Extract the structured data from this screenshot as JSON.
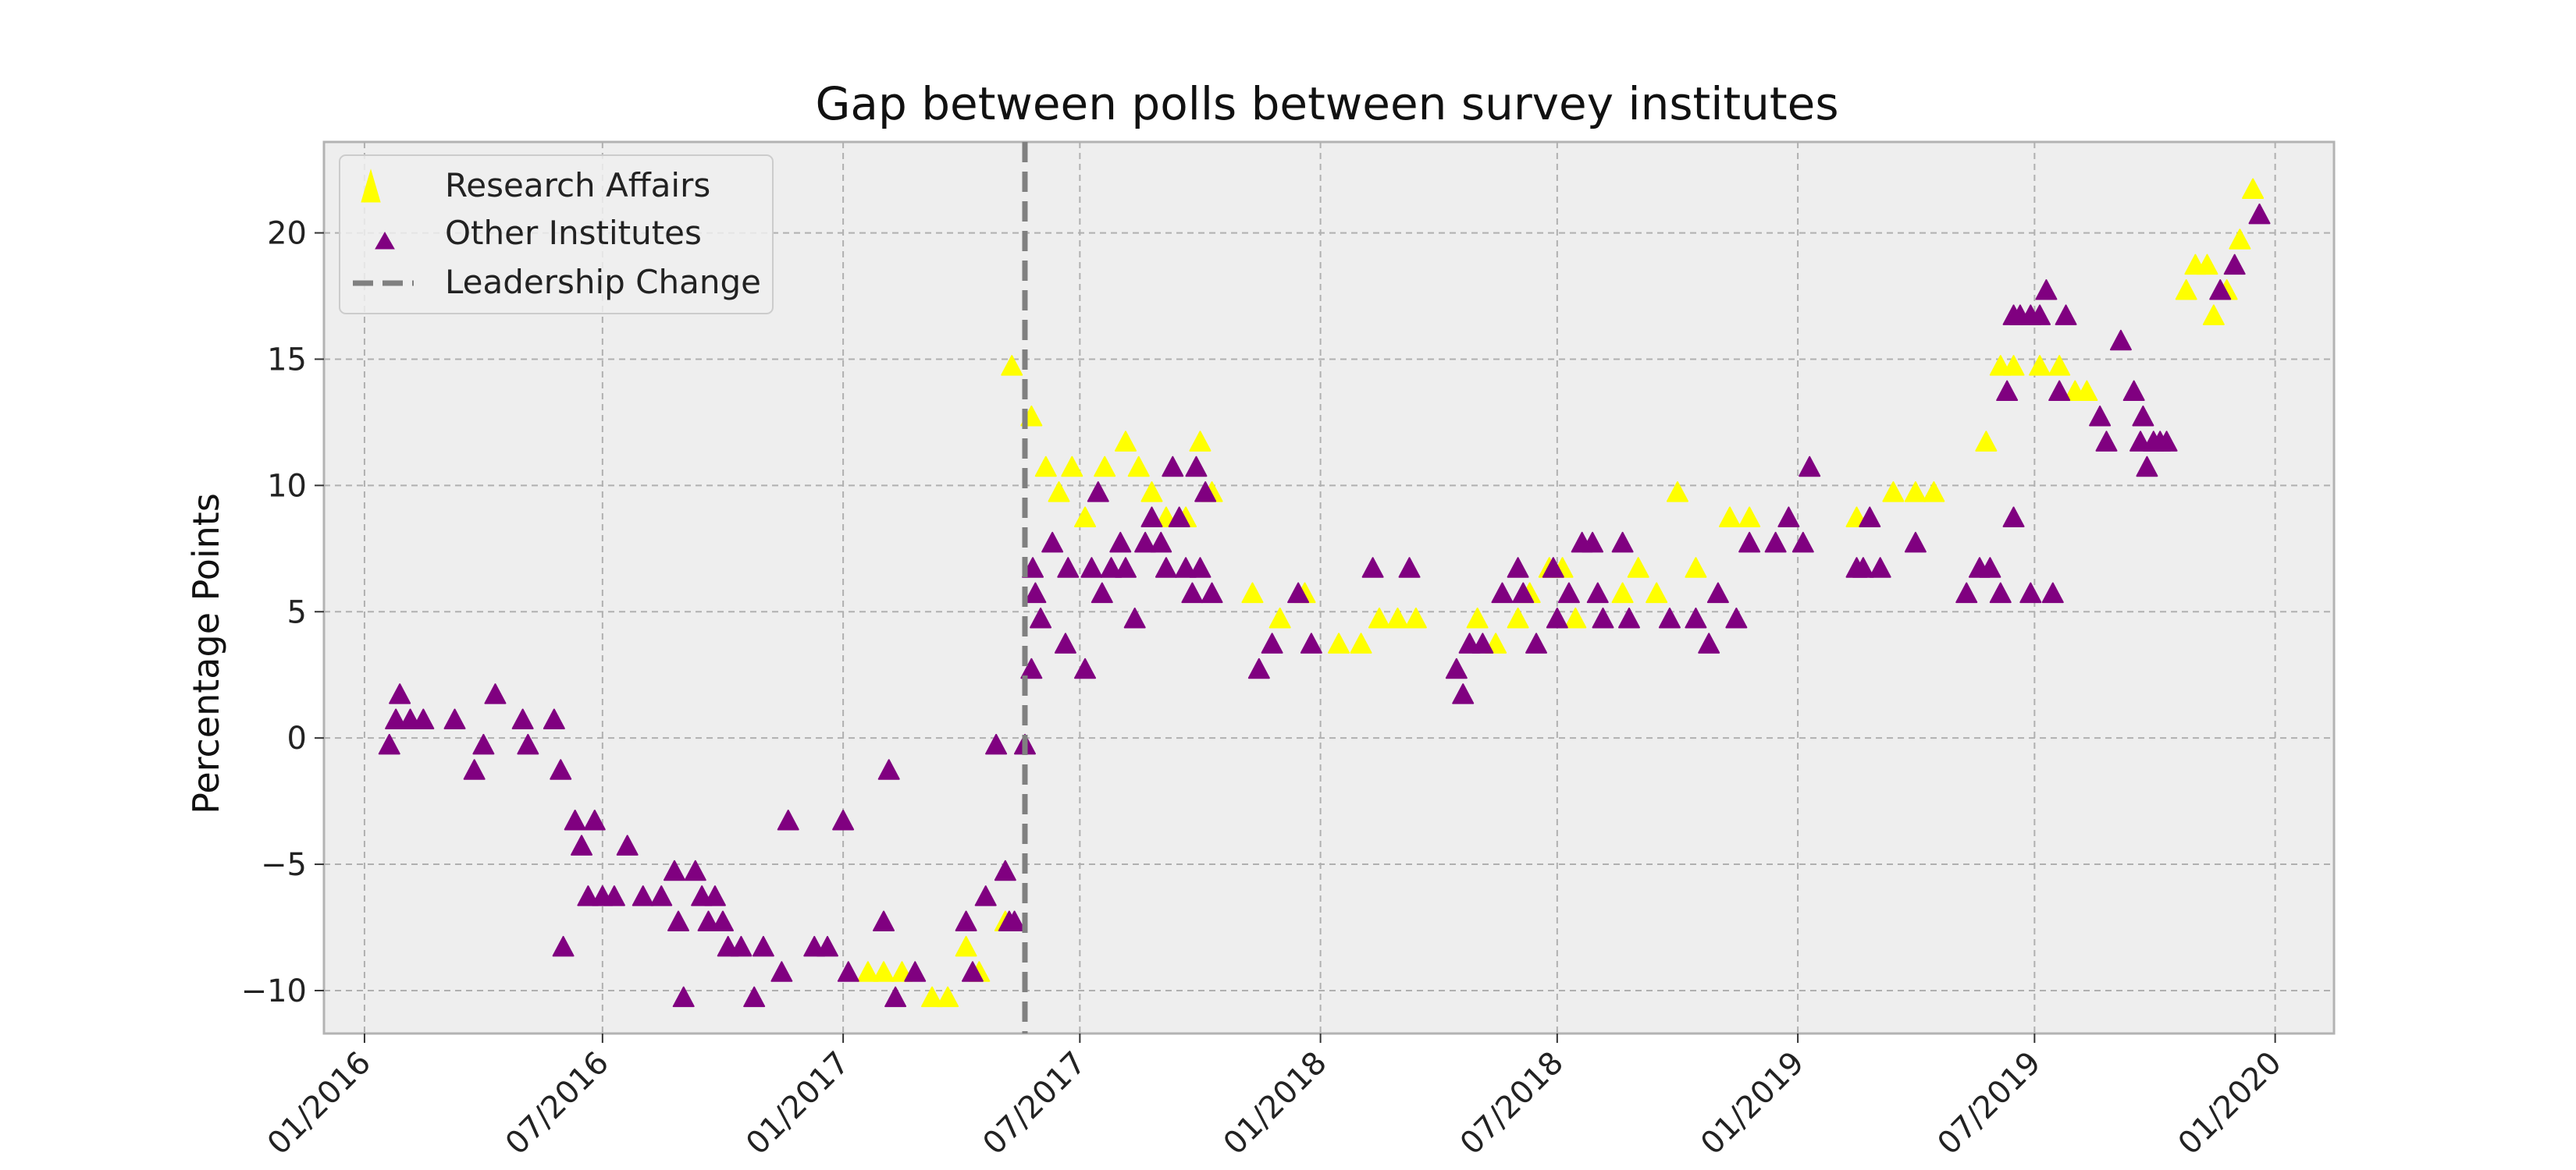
{
  "chart_data": {
    "type": "scatter",
    "title": "Gap between polls between survey institutes",
    "xlabel": "",
    "ylabel": "Percentage Points",
    "x_axis": {
      "type": "date",
      "range": [
        "2015-12-01",
        "2020-02-15"
      ],
      "tick_dates": [
        "2016-01-01",
        "2016-07-01",
        "2017-01-01",
        "2017-07-01",
        "2018-01-01",
        "2018-07-01",
        "2019-01-01",
        "2019-07-01",
        "2020-01-01"
      ],
      "tick_labels": [
        "01/2016",
        "07/2016",
        "01/2017",
        "07/2017",
        "01/2018",
        "07/2018",
        "01/2019",
        "07/2019",
        "01/2020"
      ]
    },
    "y_axis": {
      "range": [
        -11.7,
        23.6
      ],
      "ticks": [
        -10,
        -5,
        0,
        5,
        10,
        15,
        20
      ],
      "tick_labels": [
        "−10",
        "−5",
        "0",
        "5",
        "10",
        "15",
        "20"
      ]
    },
    "grid": true,
    "legend_position": "top-left",
    "colors": {
      "research_affairs": "#ffff00",
      "other_institutes": "#800080",
      "leadership_change": "#808080",
      "plot_background": "#eeeeee",
      "grid": "#b0b0b0"
    },
    "series": [
      {
        "name": "Research Affairs",
        "marker": "triangle-up",
        "color": "#ffff00",
        "points": [
          [
            "2017-01-20",
            -9.3
          ],
          [
            "2017-02-01",
            -9.3
          ],
          [
            "2017-02-15",
            -9.3
          ],
          [
            "2017-03-10",
            -10.3
          ],
          [
            "2017-03-22",
            -10.3
          ],
          [
            "2017-04-05",
            -8.3
          ],
          [
            "2017-04-15",
            -9.3
          ],
          [
            "2017-05-05",
            -7.3
          ],
          [
            "2017-05-10",
            14.7
          ],
          [
            "2017-05-25",
            12.7
          ],
          [
            "2017-06-05",
            10.7
          ],
          [
            "2017-06-15",
            9.7
          ],
          [
            "2017-06-25",
            10.7
          ],
          [
            "2017-07-05",
            8.7
          ],
          [
            "2017-07-20",
            10.7
          ],
          [
            "2017-08-05",
            11.7
          ],
          [
            "2017-08-15",
            10.7
          ],
          [
            "2017-08-25",
            9.7
          ],
          [
            "2017-09-05",
            8.7
          ],
          [
            "2017-09-20",
            8.7
          ],
          [
            "2017-10-01",
            11.7
          ],
          [
            "2017-10-10",
            9.7
          ],
          [
            "2017-11-10",
            5.7
          ],
          [
            "2017-12-01",
            4.7
          ],
          [
            "2017-12-20",
            5.7
          ],
          [
            "2018-01-15",
            3.7
          ],
          [
            "2018-02-01",
            3.7
          ],
          [
            "2018-02-15",
            4.7
          ],
          [
            "2018-03-01",
            4.7
          ],
          [
            "2018-03-15",
            4.7
          ],
          [
            "2018-05-01",
            4.7
          ],
          [
            "2018-05-15",
            3.7
          ],
          [
            "2018-06-01",
            4.7
          ],
          [
            "2018-06-10",
            5.7
          ],
          [
            "2018-06-25",
            6.7
          ],
          [
            "2018-07-05",
            6.7
          ],
          [
            "2018-07-15",
            4.7
          ],
          [
            "2018-08-20",
            5.7
          ],
          [
            "2018-09-01",
            6.7
          ],
          [
            "2018-09-15",
            5.7
          ],
          [
            "2018-10-01",
            9.7
          ],
          [
            "2018-10-15",
            6.7
          ],
          [
            "2018-11-10",
            8.7
          ],
          [
            "2018-11-25",
            8.7
          ],
          [
            "2019-02-15",
            8.7
          ],
          [
            "2019-03-15",
            9.7
          ],
          [
            "2019-04-01",
            9.7
          ],
          [
            "2019-04-15",
            9.7
          ],
          [
            "2019-05-25",
            11.7
          ],
          [
            "2019-06-05",
            14.7
          ],
          [
            "2019-06-15",
            14.7
          ],
          [
            "2019-07-05",
            14.7
          ],
          [
            "2019-07-20",
            14.7
          ],
          [
            "2019-08-01",
            13.7
          ],
          [
            "2019-08-10",
            13.7
          ],
          [
            "2019-10-25",
            17.7
          ],
          [
            "2019-11-01",
            18.7
          ],
          [
            "2019-11-10",
            18.7
          ],
          [
            "2019-11-15",
            16.7
          ],
          [
            "2019-11-25",
            17.7
          ],
          [
            "2019-12-05",
            19.7
          ],
          [
            "2019-12-15",
            21.7
          ]
        ]
      },
      {
        "name": "Other Institutes",
        "marker": "triangle-up",
        "color": "#800080",
        "points": [
          [
            "2016-01-20",
            -0.3
          ],
          [
            "2016-01-25",
            0.7
          ],
          [
            "2016-01-28",
            1.7
          ],
          [
            "2016-02-05",
            0.7
          ],
          [
            "2016-02-15",
            0.7
          ],
          [
            "2016-03-10",
            0.7
          ],
          [
            "2016-03-25",
            -1.3
          ],
          [
            "2016-04-01",
            -0.3
          ],
          [
            "2016-04-10",
            1.7
          ],
          [
            "2016-05-01",
            0.7
          ],
          [
            "2016-05-05",
            -0.3
          ],
          [
            "2016-05-25",
            0.7
          ],
          [
            "2016-05-30",
            -1.3
          ],
          [
            "2016-06-01",
            -8.3
          ],
          [
            "2016-06-10",
            -3.3
          ],
          [
            "2016-06-15",
            -4.3
          ],
          [
            "2016-06-20",
            -6.3
          ],
          [
            "2016-06-25",
            -3.3
          ],
          [
            "2016-07-01",
            -6.3
          ],
          [
            "2016-07-10",
            -6.3
          ],
          [
            "2016-07-20",
            -4.3
          ],
          [
            "2016-08-01",
            -6.3
          ],
          [
            "2016-08-15",
            -6.3
          ],
          [
            "2016-08-25",
            -5.3
          ],
          [
            "2016-08-28",
            -7.3
          ],
          [
            "2016-09-01",
            -10.3
          ],
          [
            "2016-09-10",
            -5.3
          ],
          [
            "2016-09-15",
            -6.3
          ],
          [
            "2016-09-20",
            -7.3
          ],
          [
            "2016-09-25",
            -6.3
          ],
          [
            "2016-10-01",
            -7.3
          ],
          [
            "2016-10-05",
            -8.3
          ],
          [
            "2016-10-15",
            -8.3
          ],
          [
            "2016-10-25",
            -10.3
          ],
          [
            "2016-11-01",
            -8.3
          ],
          [
            "2016-11-15",
            -9.3
          ],
          [
            "2016-11-20",
            -3.3
          ],
          [
            "2016-12-10",
            -8.3
          ],
          [
            "2016-12-20",
            -8.3
          ],
          [
            "2017-01-01",
            -3.3
          ],
          [
            "2017-01-05",
            -9.3
          ],
          [
            "2017-02-01",
            -7.3
          ],
          [
            "2017-02-05",
            -1.3
          ],
          [
            "2017-02-10",
            -10.3
          ],
          [
            "2017-02-25",
            -9.3
          ],
          [
            "2017-04-05",
            -7.3
          ],
          [
            "2017-04-10",
            -9.3
          ],
          [
            "2017-04-20",
            -6.3
          ],
          [
            "2017-04-28",
            -0.3
          ],
          [
            "2017-05-05",
            -5.3
          ],
          [
            "2017-05-08",
            -7.3
          ],
          [
            "2017-05-12",
            -7.3
          ],
          [
            "2017-05-20",
            -0.3
          ],
          [
            "2017-05-25",
            2.7
          ],
          [
            "2017-05-26",
            6.7
          ],
          [
            "2017-05-28",
            5.7
          ],
          [
            "2017-06-01",
            4.7
          ],
          [
            "2017-06-10",
            7.7
          ],
          [
            "2017-06-20",
            3.7
          ],
          [
            "2017-06-22",
            6.7
          ],
          [
            "2017-07-05",
            2.7
          ],
          [
            "2017-07-10",
            6.7
          ],
          [
            "2017-07-15",
            9.7
          ],
          [
            "2017-07-18",
            5.7
          ],
          [
            "2017-07-25",
            6.7
          ],
          [
            "2017-08-01",
            7.7
          ],
          [
            "2017-08-05",
            6.7
          ],
          [
            "2017-08-12",
            4.7
          ],
          [
            "2017-08-20",
            7.7
          ],
          [
            "2017-08-25",
            8.7
          ],
          [
            "2017-09-01",
            7.7
          ],
          [
            "2017-09-05",
            6.7
          ],
          [
            "2017-09-10",
            10.7
          ],
          [
            "2017-09-15",
            8.7
          ],
          [
            "2017-09-20",
            6.7
          ],
          [
            "2017-09-25",
            5.7
          ],
          [
            "2017-09-28",
            10.7
          ],
          [
            "2017-10-01",
            6.7
          ],
          [
            "2017-10-05",
            9.7
          ],
          [
            "2017-10-10",
            5.7
          ],
          [
            "2017-11-15",
            2.7
          ],
          [
            "2017-11-25",
            3.7
          ],
          [
            "2017-12-15",
            5.7
          ],
          [
            "2017-12-25",
            3.7
          ],
          [
            "2018-02-10",
            6.7
          ],
          [
            "2018-03-10",
            6.7
          ],
          [
            "2018-04-15",
            2.7
          ],
          [
            "2018-04-20",
            1.7
          ],
          [
            "2018-04-25",
            3.7
          ],
          [
            "2018-05-05",
            3.7
          ],
          [
            "2018-05-20",
            5.7
          ],
          [
            "2018-06-01",
            6.7
          ],
          [
            "2018-06-05",
            5.7
          ],
          [
            "2018-06-15",
            3.7
          ],
          [
            "2018-06-28",
            6.7
          ],
          [
            "2018-07-01",
            4.7
          ],
          [
            "2018-07-10",
            5.7
          ],
          [
            "2018-07-20",
            7.7
          ],
          [
            "2018-07-28",
            7.7
          ],
          [
            "2018-08-01",
            5.7
          ],
          [
            "2018-08-05",
            4.7
          ],
          [
            "2018-08-20",
            7.7
          ],
          [
            "2018-08-25",
            4.7
          ],
          [
            "2018-09-25",
            4.7
          ],
          [
            "2018-10-15",
            4.7
          ],
          [
            "2018-10-25",
            3.7
          ],
          [
            "2018-11-01",
            5.7
          ],
          [
            "2018-11-15",
            4.7
          ],
          [
            "2018-11-25",
            7.7
          ],
          [
            "2018-12-15",
            7.7
          ],
          [
            "2018-12-25",
            8.7
          ],
          [
            "2019-01-05",
            7.7
          ],
          [
            "2019-01-10",
            10.7
          ],
          [
            "2019-02-15",
            6.7
          ],
          [
            "2019-02-20",
            6.7
          ],
          [
            "2019-02-25",
            8.7
          ],
          [
            "2019-03-05",
            6.7
          ],
          [
            "2019-04-01",
            7.7
          ],
          [
            "2019-05-10",
            5.7
          ],
          [
            "2019-05-20",
            6.7
          ],
          [
            "2019-05-28",
            6.7
          ],
          [
            "2019-06-05",
            5.7
          ],
          [
            "2019-06-15",
            8.7
          ],
          [
            "2019-06-28",
            5.7
          ],
          [
            "2019-07-15",
            5.7
          ],
          [
            "2019-06-10",
            13.7
          ],
          [
            "2019-06-15",
            16.7
          ],
          [
            "2019-06-20",
            16.7
          ],
          [
            "2019-06-28",
            16.7
          ],
          [
            "2019-07-05",
            16.7
          ],
          [
            "2019-07-10",
            17.7
          ],
          [
            "2019-07-20",
            13.7
          ],
          [
            "2019-07-25",
            16.7
          ],
          [
            "2019-08-20",
            12.7
          ],
          [
            "2019-08-25",
            11.7
          ],
          [
            "2019-09-05",
            15.7
          ],
          [
            "2019-09-15",
            13.7
          ],
          [
            "2019-09-20",
            11.7
          ],
          [
            "2019-09-22",
            12.7
          ],
          [
            "2019-09-25",
            10.7
          ],
          [
            "2019-09-30",
            11.7
          ],
          [
            "2019-10-05",
            11.7
          ],
          [
            "2019-10-10",
            11.7
          ],
          [
            "2019-11-20",
            17.7
          ],
          [
            "2019-12-01",
            18.7
          ],
          [
            "2019-12-20",
            20.7
          ]
        ]
      },
      {
        "name": "Leadership Change",
        "type": "vline",
        "style": "dashed",
        "color": "#808080",
        "x": "2017-05-20"
      }
    ]
  }
}
